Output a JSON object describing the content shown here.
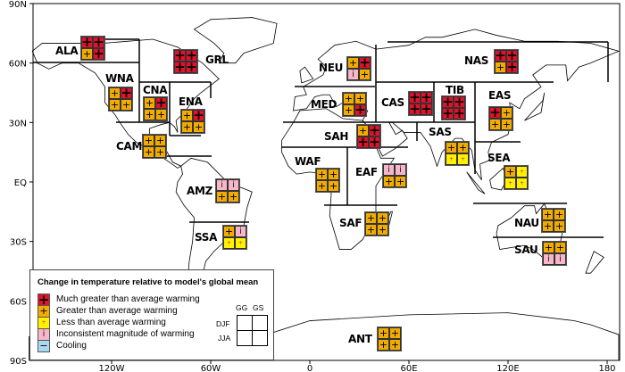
{
  "axes": {
    "lat_ticks": [
      "90N",
      "60N",
      "30N",
      "EQ",
      "30S",
      "60S",
      "90S"
    ],
    "lon_ticks": [
      "120W",
      "60W",
      "0",
      "60E",
      "120E",
      "180"
    ]
  },
  "colors": {
    "much_greater": "#e3112b",
    "greater": "#f2ac00",
    "less": "#fff200",
    "inconsistent": "#f7b6c9",
    "cooling": "#a8d8f2"
  },
  "symbols": {
    "M": "+",
    "G": "+",
    "L": "+",
    "I": "i",
    "C": "−"
  },
  "legend": {
    "title": "Change in temperature relative to model's global mean",
    "items": [
      {
        "code": "M",
        "label": "Much greater than average warming"
      },
      {
        "code": "G",
        "label": "Greater than average warming"
      },
      {
        "code": "L",
        "label": "Less than average warming"
      },
      {
        "code": "I",
        "label": "Inconsistent magnitude of warming"
      },
      {
        "code": "C",
        "label": "Cooling"
      }
    ],
    "key": {
      "col1": "GG",
      "col2": "GS",
      "row1": "DJF",
      "row2": "JJA"
    }
  },
  "regions": [
    {
      "name": "ALA",
      "cells": [
        "M",
        "M",
        "G",
        "M"
      ]
    },
    {
      "name": "GRL",
      "cells": [
        "M",
        "M",
        "M",
        "M"
      ]
    },
    {
      "name": "WNA",
      "cells": [
        "G",
        "M",
        "G",
        "G"
      ]
    },
    {
      "name": "CNA",
      "cells": [
        "G",
        "M",
        "G",
        "G"
      ]
    },
    {
      "name": "ENA",
      "cells": [
        "G",
        "M",
        "G",
        "G"
      ]
    },
    {
      "name": "CAM",
      "cells": [
        "G",
        "G",
        "G",
        "G"
      ]
    },
    {
      "name": "AMZ",
      "cells": [
        "I",
        "I",
        "G",
        "G"
      ]
    },
    {
      "name": "SSA",
      "cells": [
        "G",
        "I",
        "L",
        "L"
      ]
    },
    {
      "name": "NEU",
      "cells": [
        "G",
        "M",
        "I",
        "G"
      ]
    },
    {
      "name": "NAS",
      "cells": [
        "M",
        "M",
        "G",
        "M"
      ]
    },
    {
      "name": "MED",
      "cells": [
        "G",
        "G",
        "G",
        "M"
      ]
    },
    {
      "name": "CAS",
      "cells": [
        "M",
        "M",
        "M",
        "M"
      ]
    },
    {
      "name": "TIB",
      "cells": [
        "M",
        "M",
        "M",
        "M"
      ]
    },
    {
      "name": "EAS",
      "cells": [
        "M",
        "G",
        "G",
        "G"
      ]
    },
    {
      "name": "SAH",
      "cells": [
        "G",
        "M",
        "M",
        "M"
      ]
    },
    {
      "name": "SAS",
      "cells": [
        "G",
        "G",
        "L",
        "L"
      ]
    },
    {
      "name": "WAF",
      "cells": [
        "G",
        "G",
        "G",
        "G"
      ]
    },
    {
      "name": "EAF",
      "cells": [
        "I",
        "I",
        "G",
        "G"
      ]
    },
    {
      "name": "SEA",
      "cells": [
        "G",
        "L",
        "L",
        "L"
      ]
    },
    {
      "name": "SAF",
      "cells": [
        "G",
        "G",
        "G",
        "G"
      ]
    },
    {
      "name": "NAU",
      "cells": [
        "G",
        "G",
        "G",
        "G"
      ]
    },
    {
      "name": "SAU",
      "cells": [
        "G",
        "G",
        "I",
        "I"
      ]
    },
    {
      "name": "ANT",
      "cells": [
        "G",
        "G",
        "G",
        "G"
      ]
    }
  ]
}
